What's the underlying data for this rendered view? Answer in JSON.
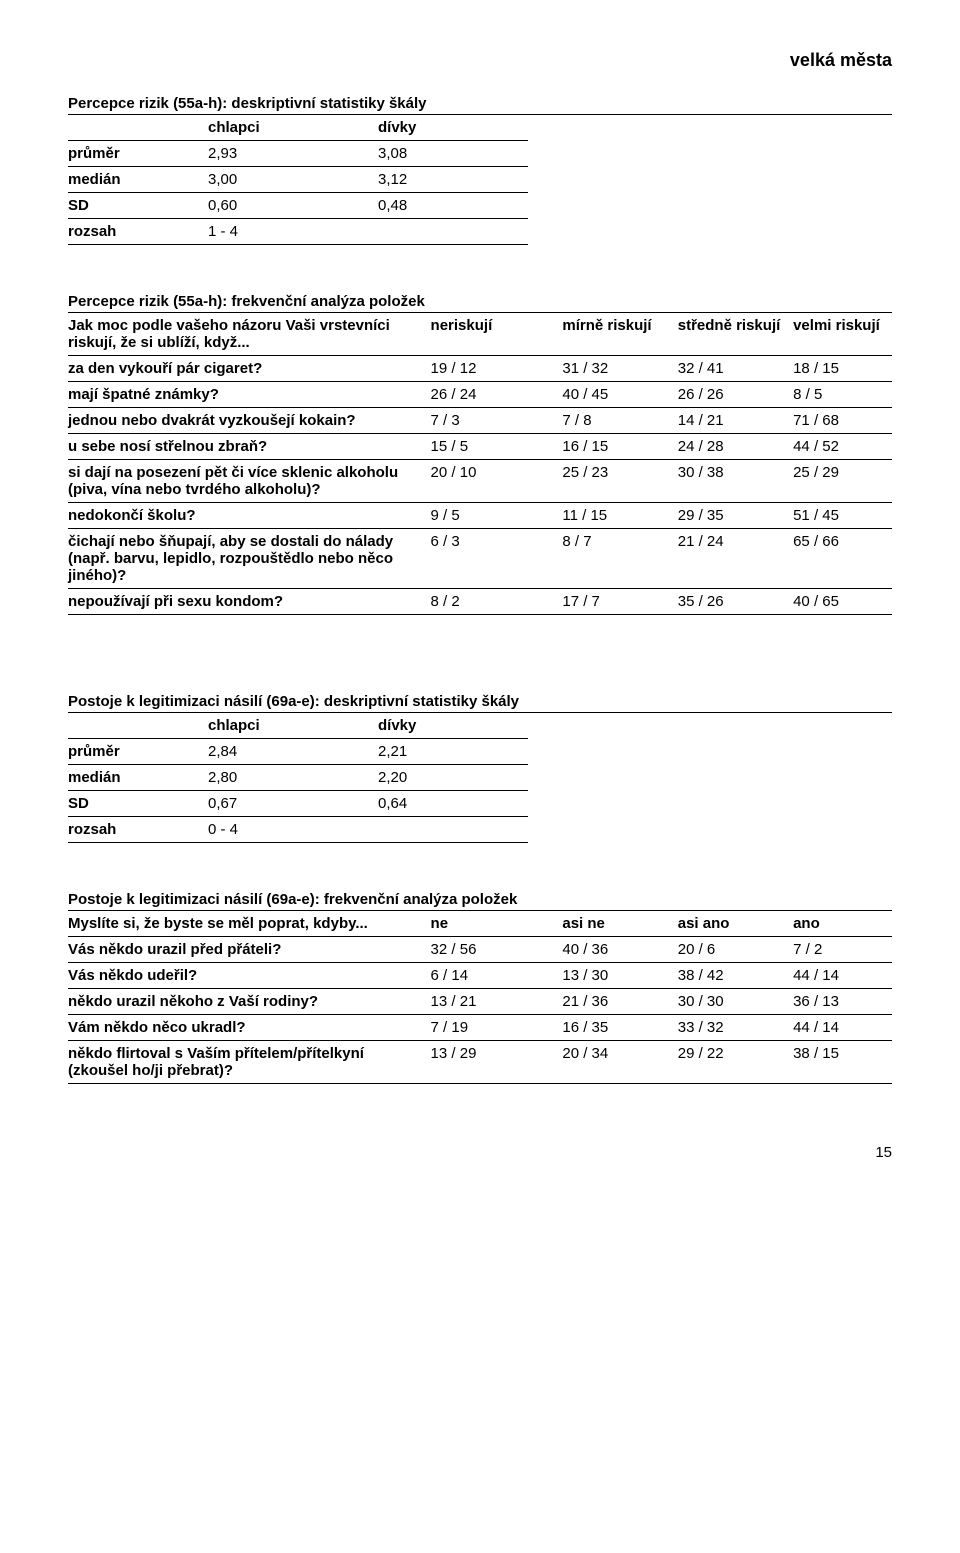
{
  "page_header": "velká města",
  "page_number": "15",
  "table1": {
    "title": "Percepce rizik (55a-h): deskriptivní statistiky škály",
    "col_chlapci": "chlapci",
    "col_divky": "dívky",
    "rows": {
      "prumer": {
        "label": "průměr",
        "a": "2,93",
        "b": "3,08"
      },
      "median": {
        "label": "medián",
        "a": "3,00",
        "b": "3,12"
      },
      "sd": {
        "label": "SD",
        "a": "0,60",
        "b": "0,48"
      },
      "rozsah": {
        "label": "rozsah",
        "a": "1 - 4",
        "b": ""
      }
    }
  },
  "table2": {
    "title": "Percepce rizik (55a-h): frekvenční analýza položek",
    "lead": "Jak moc podle vašeho názoru Vaši vrstevníci riskují, že si ublíží, když...",
    "h1": "neriskují",
    "h2": "mírně riskují",
    "h3": "středně riskují",
    "h4": "velmi riskují",
    "rows": [
      {
        "label": "za den vykouří pár cigaret?",
        "a": "19 / 12",
        "b": "31 / 32",
        "c": "32 / 41",
        "d": "18 / 15"
      },
      {
        "label": "mají špatné známky?",
        "a": "26 / 24",
        "b": "40 / 45",
        "c": "26 / 26",
        "d": "8 / 5"
      },
      {
        "label": "jednou nebo dvakrát vyzkoušejí kokain?",
        "a": "7 / 3",
        "b": "7 / 8",
        "c": "14 / 21",
        "d": "71 / 68"
      },
      {
        "label": "u sebe nosí střelnou zbraň?",
        "a": "15 / 5",
        "b": "16 / 15",
        "c": "24 / 28",
        "d": "44 / 52"
      },
      {
        "label": "si dají na posezení pět či více sklenic alkoholu (piva, vína nebo tvrdého alkoholu)?",
        "a": "20 / 10",
        "b": "25 / 23",
        "c": "30 / 38",
        "d": "25 / 29"
      },
      {
        "label": "nedokončí školu?",
        "a": "9 / 5",
        "b": "11 / 15",
        "c": "29 / 35",
        "d": "51 / 45"
      },
      {
        "label": "čichají nebo šňupají, aby se dostali do nálady (např. barvu, lepidlo, rozpouštědlo nebo něco jiného)?",
        "a": "6 / 3",
        "b": "8 / 7",
        "c": "21 / 24",
        "d": "65 / 66"
      },
      {
        "label": "nepoužívají při sexu kondom?",
        "a": "8 / 2",
        "b": "17 / 7",
        "c": "35 / 26",
        "d": "40 / 65"
      }
    ]
  },
  "table3": {
    "title": "Postoje k legitimizaci násilí (69a-e): deskriptivní statistiky škály",
    "col_chlapci": "chlapci",
    "col_divky": "dívky",
    "rows": {
      "prumer": {
        "label": "průměr",
        "a": "2,84",
        "b": "2,21"
      },
      "median": {
        "label": "medián",
        "a": "2,80",
        "b": "2,20"
      },
      "sd": {
        "label": "SD",
        "a": "0,67",
        "b": "0,64"
      },
      "rozsah": {
        "label": "rozsah",
        "a": "0 - 4",
        "b": ""
      }
    }
  },
  "table4": {
    "title": "Postoje k legitimizaci násilí (69a-e): frekvenční analýza položek",
    "lead": "Myslíte si, že byste se měl poprat, kdyby...",
    "h1": "ne",
    "h2": "asi ne",
    "h3": "asi ano",
    "h4": "ano",
    "rows": [
      {
        "label": "Vás někdo urazil před přáteli?",
        "a": "32 / 56",
        "b": "40 / 36",
        "c": "20 / 6",
        "d": "7 / 2"
      },
      {
        "label": "Vás někdo udeřil?",
        "a": "6 / 14",
        "b": "13 / 30",
        "c": "38 / 42",
        "d": "44 / 14"
      },
      {
        "label": "někdo urazil někoho z Vaší rodiny?",
        "a": "13 / 21",
        "b": "21 / 36",
        "c": "30 / 30",
        "d": "36 / 13"
      },
      {
        "label": "Vám někdo něco ukradl?",
        "a": "7 / 19",
        "b": "16 / 35",
        "c": "33 / 32",
        "d": "44 / 14"
      },
      {
        "label": "někdo flirtoval s Vaším přítelem/přítelkyní (zkoušel ho/ji přebrat)?",
        "a": "13 / 29",
        "b": "20 / 34",
        "c": "29 / 22",
        "d": "38 / 15"
      }
    ]
  }
}
